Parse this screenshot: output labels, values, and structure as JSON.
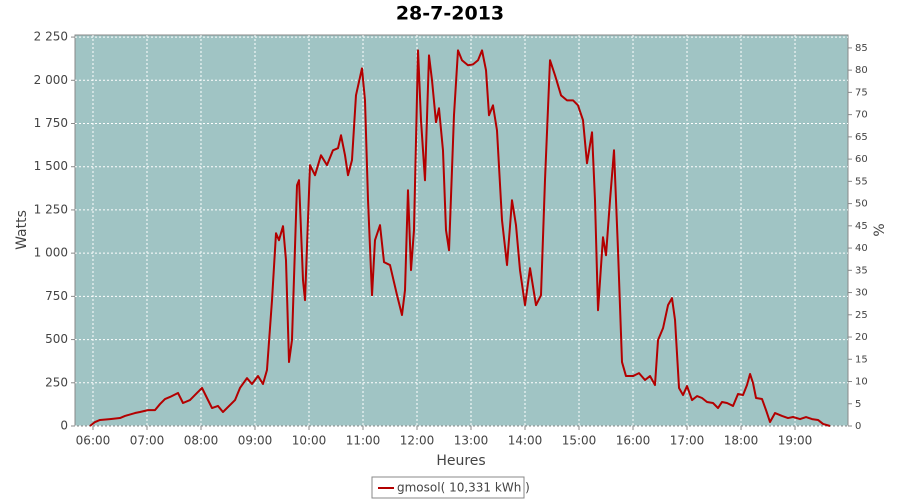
{
  "chart_data": {
    "type": "line",
    "title": "28-7-2013",
    "x_label": "Heures",
    "y_label": "Watts",
    "y2_label": "%",
    "x": [
      5.944,
      6.037,
      6.13,
      6.315,
      6.5,
      6.593,
      6.778,
      6.87,
      7.019,
      7.148,
      7.241,
      7.333,
      7.426,
      7.574,
      7.667,
      7.796,
      7.926,
      8.019,
      8.111,
      8.204,
      8.315,
      8.407,
      8.537,
      8.63,
      8.722,
      8.852,
      8.944,
      9.056,
      9.148,
      9.222,
      9.315,
      9.389,
      9.444,
      9.519,
      9.574,
      9.63,
      9.685,
      9.778,
      9.815,
      9.889,
      9.926,
      10.019,
      10.111,
      10.222,
      10.333,
      10.444,
      10.537,
      10.593,
      10.667,
      10.722,
      10.796,
      10.87,
      10.981,
      11.037,
      11.093,
      11.167,
      11.222,
      11.315,
      11.389,
      11.5,
      11.63,
      11.722,
      11.778,
      11.833,
      11.889,
      11.944,
      12.019,
      12.074,
      12.148,
      12.222,
      12.278,
      12.352,
      12.407,
      12.481,
      12.537,
      12.593,
      12.685,
      12.759,
      12.833,
      12.944,
      13.037,
      13.13,
      13.204,
      13.278,
      13.333,
      13.407,
      13.481,
      13.574,
      13.667,
      13.759,
      13.833,
      13.907,
      14.0,
      14.093,
      14.204,
      14.296,
      14.37,
      14.463,
      14.556,
      14.667,
      14.778,
      14.889,
      14.981,
      15.074,
      15.148,
      15.241,
      15.296,
      15.352,
      15.444,
      15.5,
      15.574,
      15.648,
      15.722,
      15.796,
      15.87,
      16.0,
      16.111,
      16.222,
      16.315,
      16.407,
      16.463,
      16.556,
      16.648,
      16.722,
      16.778,
      16.852,
      16.926,
      17.0,
      17.093,
      17.185,
      17.278,
      17.37,
      17.481,
      17.574,
      17.648,
      17.741,
      17.852,
      17.944,
      18.037,
      18.111,
      18.167,
      18.222,
      18.278,
      18.389,
      18.463,
      18.537,
      18.63,
      18.759,
      18.87,
      18.963,
      19.093,
      19.204,
      19.315,
      19.426,
      19.519,
      19.648
    ],
    "series": [
      {
        "name": "gmosol( 10,331 kWh )",
        "color": "#b30000",
        "values": [
          0,
          23,
          35,
          40,
          46,
          58,
          75,
          81,
          92,
          92,
          127,
          156,
          168,
          191,
          133,
          150,
          191,
          220,
          162,
          104,
          116,
          81,
          121,
          150,
          220,
          277,
          243,
          289,
          243,
          324,
          728,
          1115,
          1075,
          1156,
          960,
          370,
          497,
          1393,
          1422,
          844,
          728,
          1509,
          1451,
          1566,
          1509,
          1595,
          1607,
          1682,
          1566,
          1451,
          1538,
          1913,
          2069,
          1884,
          1306,
          757,
          1075,
          1162,
          948,
          931,
          757,
          642,
          786,
          1364,
          902,
          1133,
          2173,
          1769,
          1422,
          2144,
          2000,
          1757,
          1838,
          1595,
          1133,
          1017,
          1798,
          2173,
          2116,
          2087,
          2092,
          2116,
          2173,
          2058,
          1798,
          1855,
          1711,
          1191,
          931,
          1306,
          1162,
          902,
          699,
          913,
          699,
          757,
          1422,
          2116,
          2029,
          1913,
          1884,
          1884,
          1855,
          1769,
          1520,
          1699,
          1306,
          670,
          1092,
          988,
          1306,
          1595,
          1017,
          370,
          289,
          289,
          306,
          266,
          289,
          237,
          497,
          566,
          699,
          740,
          613,
          220,
          179,
          231,
          150,
          173,
          162,
          139,
          133,
          104,
          139,
          133,
          116,
          185,
          179,
          237,
          301,
          249,
          162,
          156,
          92,
          23,
          75,
          58,
          46,
          52,
          40,
          52,
          40,
          35,
          12,
          0
        ]
      }
    ],
    "xlim": [
      5.667,
      19.981
    ],
    "xticks": [
      {
        "value": 6,
        "label": "06:00"
      },
      {
        "value": 7,
        "label": "07:00"
      },
      {
        "value": 8,
        "label": "08:00"
      },
      {
        "value": 9,
        "label": "09:00"
      },
      {
        "value": 10,
        "label": "10:00"
      },
      {
        "value": 11,
        "label": "11:00"
      },
      {
        "value": 12,
        "label": "12:00"
      },
      {
        "value": 13,
        "label": "13:00"
      },
      {
        "value": 14,
        "label": "14:00"
      },
      {
        "value": 15,
        "label": "15:00"
      },
      {
        "value": 16,
        "label": "16:00"
      },
      {
        "value": 17,
        "label": "17:00"
      },
      {
        "value": 18,
        "label": "18:00"
      },
      {
        "value": 19,
        "label": "19:00"
      }
    ],
    "ylim": [
      0,
      2262
    ],
    "yticks": [
      0,
      250,
      500,
      750,
      {
        "value": 1000,
        "label": "1 000"
      },
      {
        "value": 1250,
        "label": "1 250"
      },
      {
        "value": 1500,
        "label": "1 500"
      },
      {
        "value": 1750,
        "label": "1 750"
      },
      {
        "value": 2000,
        "label": "2 000"
      },
      {
        "value": 2250,
        "label": "2 250"
      }
    ],
    "y2lim": [
      0,
      87.9
    ],
    "y2ticks": [
      0,
      5,
      10,
      15,
      20,
      25,
      30,
      35,
      40,
      45,
      50,
      55,
      60,
      65,
      70,
      75,
      80,
      85
    ],
    "grid": true,
    "plot_background": "#a0c4c4",
    "legend": "bottom"
  }
}
